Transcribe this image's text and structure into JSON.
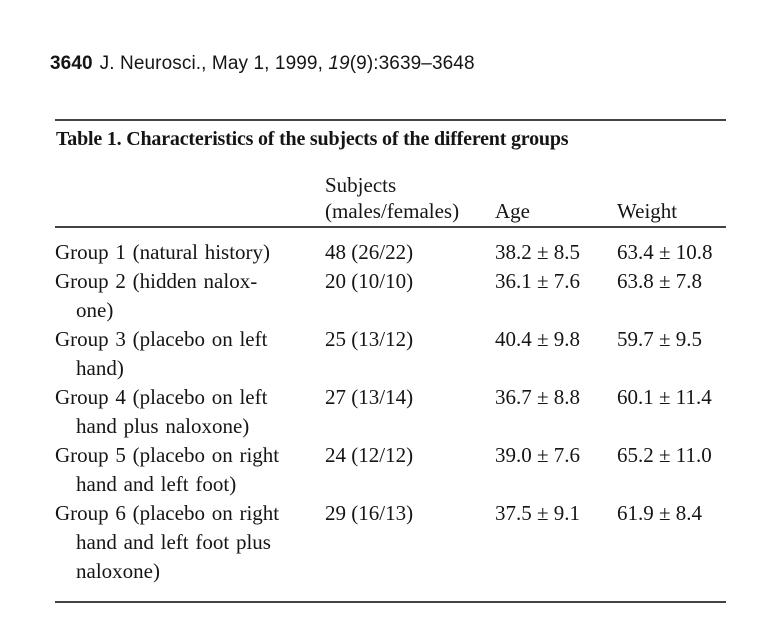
{
  "page_header": {
    "page_number": "3640",
    "citation": "J. Neurosci., May 1, 1999,",
    "volume": "19",
    "issue_pages": "(9):3639–3648"
  },
  "table": {
    "title": "Table 1. Characteristics of the subjects of the different groups",
    "columns": {
      "group": "",
      "subjects": "Subjects\n(males/females)",
      "age": "Age",
      "weight": "Weight"
    },
    "rows": [
      {
        "group": "Group 1 (natural history)",
        "subjects": "48 (26/22)",
        "age": "38.2 ± 8.5",
        "weight": "63.4 ± 10.8"
      },
      {
        "group": "Group 2 (hidden nalox-\none)",
        "subjects": "20 (10/10)",
        "age": "36.1 ± 7.6",
        "weight": "63.8 ± 7.8"
      },
      {
        "group": "Group 3 (placebo on left\nhand)",
        "subjects": "25 (13/12)",
        "age": "40.4 ± 9.8",
        "weight": "59.7 ± 9.5"
      },
      {
        "group": "Group 4 (placebo on left\nhand plus naloxone)",
        "subjects": "27 (13/14)",
        "age": "36.7 ± 8.8",
        "weight": "60.1 ± 11.4"
      },
      {
        "group": "Group 5 (placebo on right\nhand and left foot)",
        "subjects": "24 (12/12)",
        "age": "39.0 ± 7.6",
        "weight": "65.2 ± 11.0"
      },
      {
        "group": "Group 6 (placebo on right\nhand and left foot plus\nnaloxone)",
        "subjects": "29 (16/13)",
        "age": "37.5 ± 9.1",
        "weight": "61.9 ± 8.4"
      }
    ]
  },
  "colors": {
    "background": "#ffffff",
    "text": "#151515",
    "rule": "#434343"
  }
}
